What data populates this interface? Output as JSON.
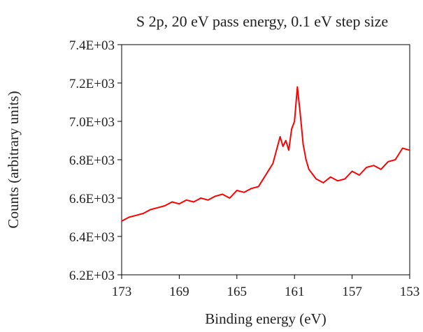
{
  "chart_data": {
    "type": "line",
    "title": "S 2p, 20 eV pass energy, 0.1 eV step size",
    "xlabel": "Binding energy (eV)",
    "ylabel": "Counts (arbitrary units)",
    "xlim": [
      173,
      153
    ],
    "ylim": [
      6200,
      7400
    ],
    "xticks": [
      173,
      169,
      165,
      161,
      157,
      153
    ],
    "xtick_labels": [
      "173",
      "169",
      "165",
      "161",
      "157",
      "153"
    ],
    "yticks": [
      6200,
      6400,
      6600,
      6800,
      7000,
      7200,
      7400
    ],
    "ytick_labels": [
      "6.2E+03",
      "6.4E+03",
      "6.6E+03",
      "6.8E+03",
      "7.0E+03",
      "7.2E+03",
      "7.4E+03"
    ],
    "grid": false,
    "legend": "none",
    "series": [
      {
        "color": "#ff0000",
        "x": [
          173,
          172.5,
          172,
          171.5,
          171,
          170.5,
          170,
          169.5,
          169,
          168.5,
          168,
          167.5,
          167,
          166.5,
          166,
          165.5,
          165,
          164.5,
          164,
          163.5,
          163,
          162.5,
          162,
          161.8,
          161.6,
          161.4,
          161.2,
          161,
          160.8,
          160.6,
          160.4,
          160.2,
          160,
          159.5,
          159,
          158.5,
          158,
          157.5,
          157,
          156.5,
          156,
          155.5,
          155,
          154.5,
          154,
          153.5,
          153
        ],
        "y": [
          6480,
          6500,
          6510,
          6520,
          6540,
          6550,
          6560,
          6580,
          6570,
          6590,
          6580,
          6600,
          6590,
          6610,
          6620,
          6600,
          6640,
          6630,
          6650,
          6660,
          6720,
          6780,
          6920,
          6870,
          6900,
          6850,
          6960,
          7000,
          7180,
          7040,
          6880,
          6800,
          6750,
          6700,
          6680,
          6710,
          6690,
          6700,
          6740,
          6720,
          6760,
          6770,
          6750,
          6790,
          6800,
          6860,
          6850
        ]
      }
    ]
  }
}
